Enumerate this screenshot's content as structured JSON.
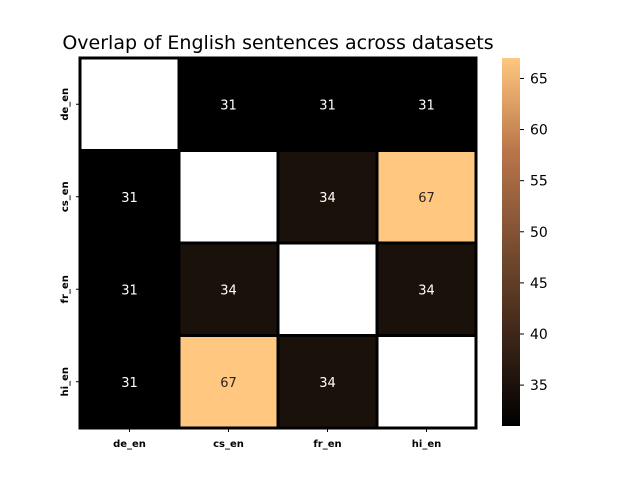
{
  "chart_data": {
    "type": "heatmap",
    "title": "Overlap of English sentences across datasets",
    "x_labels": [
      "de_en",
      "cs_en",
      "fr_en",
      "hi_en"
    ],
    "y_labels": [
      "de_en",
      "cs_en",
      "fr_en",
      "hi_en"
    ],
    "matrix": [
      [
        null,
        31,
        31,
        31
      ],
      [
        31,
        null,
        34,
        67
      ],
      [
        31,
        34,
        null,
        34
      ],
      [
        31,
        67,
        34,
        null
      ]
    ],
    "colorbar": {
      "min": 31,
      "max": 67,
      "ticks": [
        35,
        40,
        45,
        50,
        55,
        60,
        65
      ]
    },
    "colormap": "copper",
    "xlabel": "",
    "ylabel": ""
  }
}
